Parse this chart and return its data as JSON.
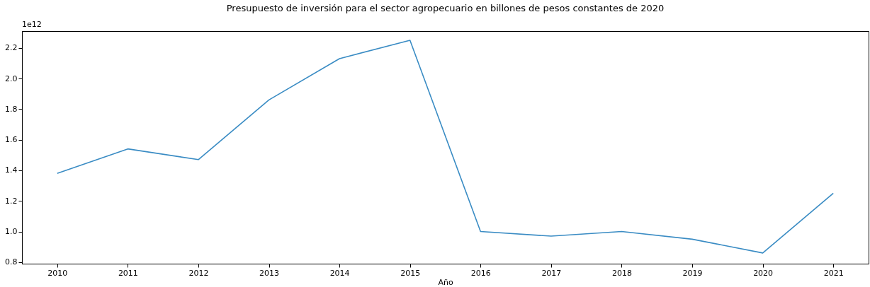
{
  "chart_data": {
    "type": "line",
    "title": "Presupuesto de inversión para el sector agropecuario en billones de pesos constantes de 2020",
    "xlabel": "Año",
    "categories": [
      "2010",
      "2011",
      "2012",
      "2013",
      "2014",
      "2015",
      "2016",
      "2017",
      "2018",
      "2019",
      "2020",
      "2021"
    ],
    "series": [
      {
        "color": "#3a8cc4",
        "values": [
          1.38,
          1.54,
          1.47,
          1.86,
          2.13,
          2.25,
          1.0,
          0.97,
          1.0,
          0.95,
          0.86,
          1.25
        ]
      }
    ],
    "ylim": [
      0.79,
      2.31
    ],
    "yticks": [
      0.8,
      {
        "value": 1,
        "label": "1.0"
      },
      1.2,
      1.4,
      1.6,
      1.8,
      {
        "value": 2,
        "label": "2.0"
      },
      2.2
    ],
    "annotations": [
      "1e12"
    ],
    "grid": false,
    "legend": false,
    "marker": "none",
    "line_style": "solid"
  }
}
